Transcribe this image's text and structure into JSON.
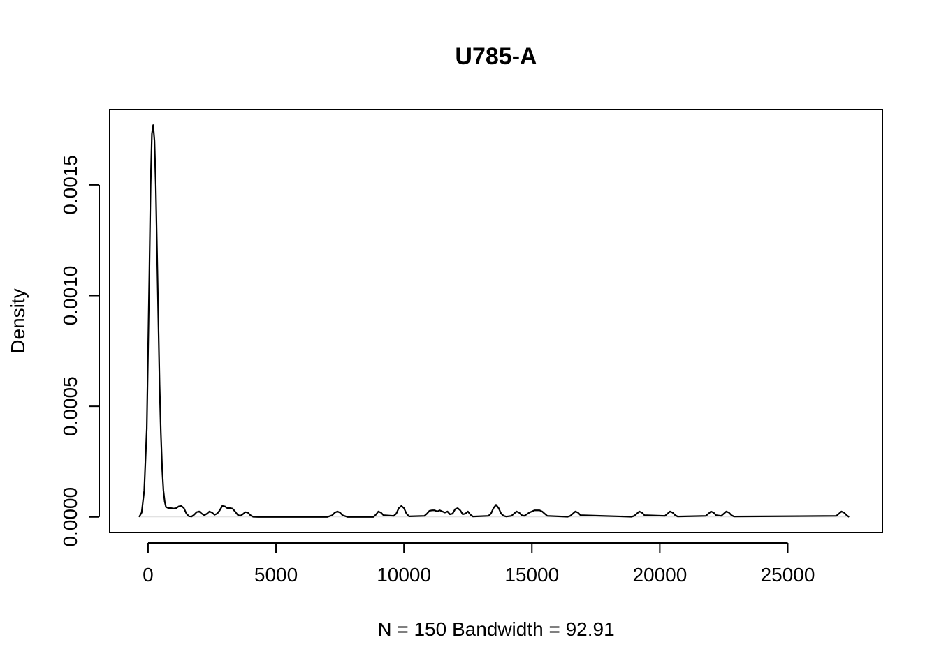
{
  "chart_data": {
    "type": "line",
    "title": "U785-A",
    "xlabel": "N = 150   Bandwidth = 92.91",
    "ylabel": "Density",
    "xlim": [
      -1500,
      28700
    ],
    "ylim": [
      -7e-05,
      0.00184
    ],
    "x_ticks": [
      0,
      5000,
      10000,
      15000,
      20000,
      25000
    ],
    "x_tick_labels": [
      "0",
      "5000",
      "10000",
      "15000",
      "20000",
      "25000"
    ],
    "y_ticks": [
      0,
      0.0005,
      0.001,
      0.0015
    ],
    "y_tick_labels": [
      "0.0000",
      "0.0005",
      "0.0010",
      "0.0015"
    ],
    "zero_baseline": true,
    "grid": false,
    "series": [
      {
        "color": "#000000",
        "x": [
          -350,
          -250,
          -150,
          -50,
          0,
          50,
          100,
          150,
          200,
          250,
          300,
          350,
          400,
          450,
          500,
          550,
          600,
          650,
          700,
          800,
          900,
          1000,
          1100,
          1200,
          1300,
          1400,
          1500,
          1600,
          1700,
          1800,
          1900,
          2000,
          2100,
          2200,
          2300,
          2400,
          2500,
          2600,
          2700,
          2800,
          2900,
          3000,
          3100,
          3200,
          3300,
          3400,
          3500,
          3600,
          3700,
          3800,
          3900,
          4000,
          4100,
          4300,
          5000,
          6000,
          7000,
          7200,
          7300,
          7400,
          7500,
          7600,
          7800,
          8800,
          8900,
          9000,
          9100,
          9200,
          9600,
          9700,
          9800,
          9900,
          10000,
          10100,
          10200,
          10800,
          10900,
          11000,
          11100,
          11200,
          11300,
          11400,
          11500,
          11600,
          11700,
          11800,
          11900,
          12000,
          12100,
          12200,
          12300,
          12400,
          12500,
          12600,
          12700,
          13300,
          13400,
          13500,
          13600,
          13700,
          13800,
          13900,
          14000,
          14200,
          14300,
          14400,
          14500,
          14600,
          14700,
          14800,
          14900,
          15000,
          15100,
          15200,
          15300,
          15400,
          15500,
          15600,
          16400,
          16500,
          16600,
          16700,
          16800,
          16900,
          18900,
          19000,
          19100,
          19200,
          19300,
          19400,
          20200,
          20300,
          20400,
          20500,
          20600,
          20700,
          21800,
          21900,
          22000,
          22100,
          22200,
          22400,
          22500,
          22600,
          22700,
          22800,
          22900,
          26900,
          27000,
          27100,
          27200,
          27300,
          27400
        ],
        "y": [
          0,
          2e-05,
          0.00012,
          0.0004,
          0.00075,
          0.0011,
          0.0015,
          0.00173,
          0.00177,
          0.0017,
          0.0015,
          0.0012,
          0.0009,
          0.0006,
          0.00038,
          0.00022,
          0.00012,
          7e-05,
          4.5e-05,
          4e-05,
          4e-05,
          3.8e-05,
          4e-05,
          4.8e-05,
          5e-05,
          4e-05,
          1.5e-05,
          3e-06,
          2e-06,
          1e-05,
          2.2e-05,
          2.5e-05,
          1.5e-05,
          8e-06,
          1.5e-05,
          2.5e-05,
          2e-05,
          1e-05,
          1.5e-05,
          3e-05,
          5e-05,
          4.8e-05,
          4e-05,
          4e-05,
          3.8e-05,
          2.5e-05,
          1e-05,
          5e-06,
          1.2e-05,
          2.2e-05,
          2e-05,
          8e-06,
          1e-06,
          0,
          0,
          0,
          0,
          8e-06,
          2e-05,
          2.5e-05,
          2e-05,
          8e-06,
          0,
          0,
          1e-05,
          2.5e-05,
          2e-05,
          8e-06,
          5e-06,
          1.5e-05,
          4e-05,
          5e-05,
          4e-05,
          1.5e-05,
          3e-06,
          5e-06,
          1.5e-05,
          2.8e-05,
          3e-05,
          3e-05,
          2.5e-05,
          3e-05,
          2.5e-05,
          2e-05,
          2.5e-05,
          1.2e-05,
          1.5e-05,
          3.5e-05,
          4e-05,
          3e-05,
          1.2e-05,
          1.5e-05,
          2.5e-05,
          1e-05,
          2e-06,
          5e-06,
          1.5e-05,
          4e-05,
          5.5e-05,
          4e-05,
          1.5e-05,
          5e-06,
          2e-06,
          5e-06,
          1.5e-05,
          2.5e-05,
          2e-05,
          8e-06,
          5e-06,
          1.2e-05,
          2e-05,
          2.5e-05,
          3e-05,
          3e-05,
          3e-05,
          2.5e-05,
          1.5e-05,
          5e-06,
          1e-06,
          5e-06,
          1.5e-05,
          2.5e-05,
          2e-05,
          8e-06,
          1e-06,
          5e-06,
          1.5e-05,
          2.5e-05,
          2e-05,
          8e-06,
          5e-06,
          1.5e-05,
          2.5e-05,
          2e-05,
          8e-06,
          2e-06,
          5e-06,
          1.5e-05,
          2.5e-05,
          2e-05,
          8e-06,
          5e-06,
          1.5e-05,
          2.5e-05,
          2e-05,
          8e-06,
          2e-06,
          5e-06,
          1.5e-05,
          2.5e-05,
          2e-05,
          8e-06,
          0
        ]
      }
    ]
  }
}
